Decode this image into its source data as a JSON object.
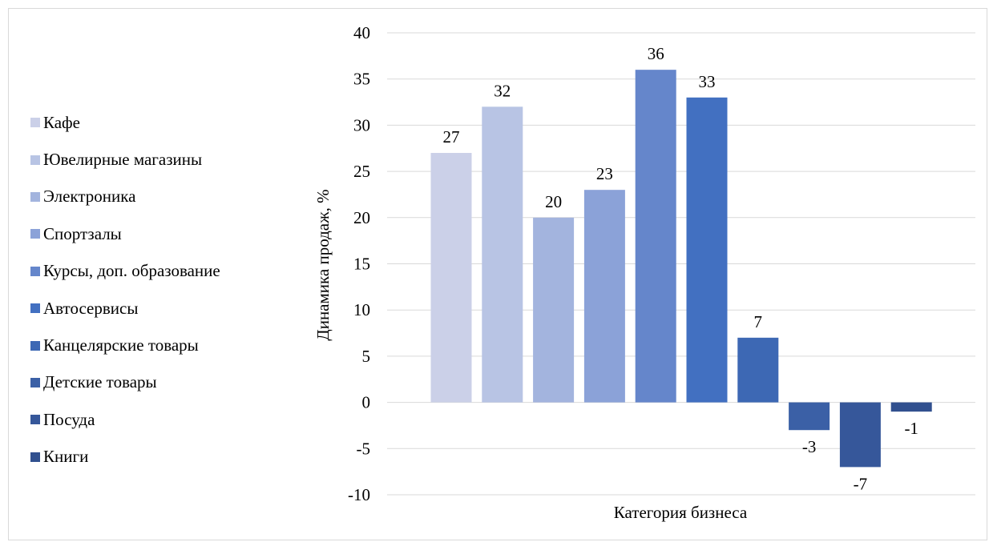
{
  "chart_data": {
    "type": "bar",
    "categories": [
      "Кафе",
      "Ювелирные магазины",
      "Электроника",
      "Спортзалы",
      "Курсы, доп. образование",
      "Автосервисы",
      "Канцелярские товары",
      "Детские товары",
      "Посуда",
      "Книги"
    ],
    "values": [
      27,
      32,
      20,
      23,
      36,
      33,
      7,
      -3,
      -7,
      -1
    ],
    "colors": [
      "#cbd0e8",
      "#b8c4e4",
      "#a3b4de",
      "#8ba2d8",
      "#6586cb",
      "#4270c1",
      "#3d68b4",
      "#3b60a6",
      "#36579a",
      "#31508f"
    ],
    "title": "",
    "xlabel": "Категория бизнеса",
    "ylabel": "Динамика продаж, %",
    "ylim": [
      -10,
      40
    ],
    "yticks": [
      "-10",
      "-5",
      "0",
      "5",
      "10",
      "15",
      "20",
      "25",
      "30",
      "35",
      "40"
    ],
    "data_labels": [
      "27",
      "32",
      "20",
      "23",
      "36",
      "33",
      "7",
      "-3",
      "-7",
      "-1"
    ],
    "grid": true,
    "legend_position": "left"
  }
}
